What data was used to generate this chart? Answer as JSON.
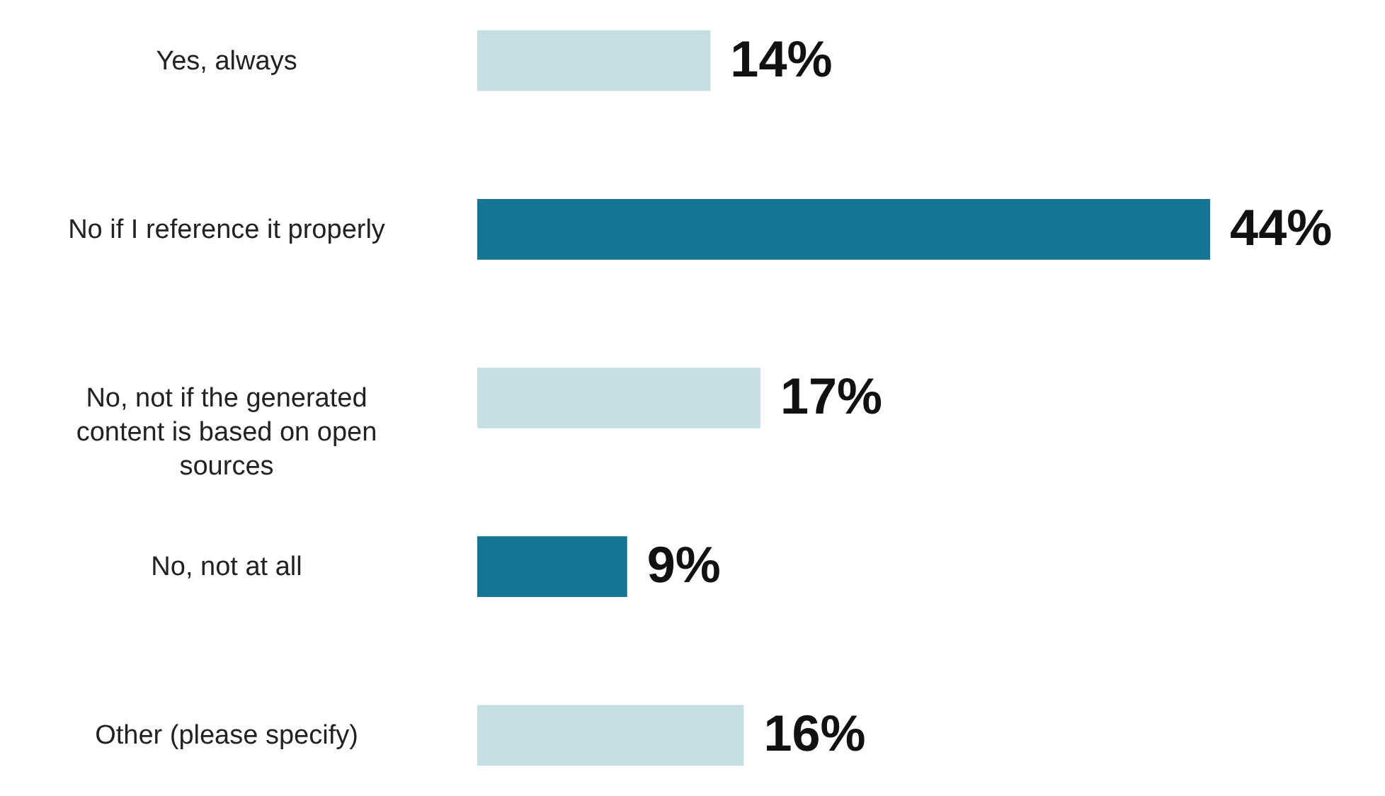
{
  "chart_data": {
    "type": "bar",
    "orientation": "horizontal",
    "categories": [
      "Yes, always",
      "No if I reference it properly",
      "No, not if the generated content is based on open sources",
      "No, not at all",
      "Other (please specify)"
    ],
    "values": [
      14,
      44,
      17,
      9,
      16
    ],
    "colors": [
      "#c5dee4",
      "#157592",
      "#c5dee4",
      "#157592",
      "#c5dee4"
    ],
    "value_labels": [
      "14%",
      "44%",
      "17%",
      "9%",
      "16%"
    ]
  }
}
